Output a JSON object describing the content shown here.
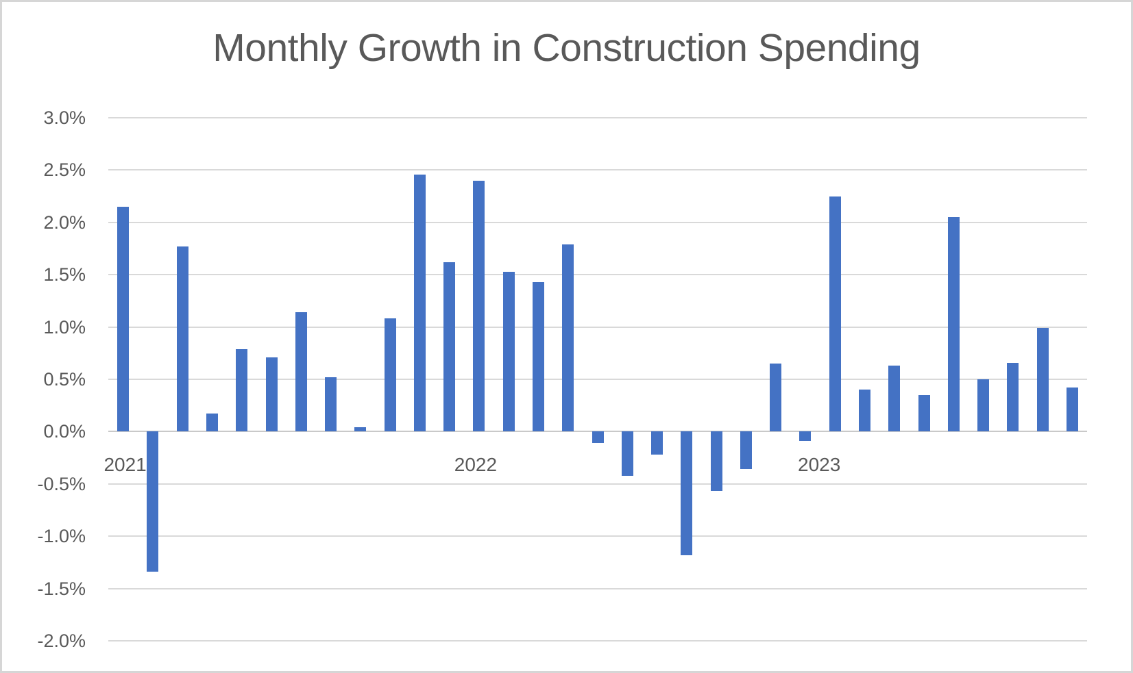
{
  "title": "Monthly Growth in Construction Spending",
  "chart_data": {
    "type": "bar",
    "title": "Monthly Growth in Construction Spending",
    "categories": [
      "Jan 2021",
      "Feb 2021",
      "Mar 2021",
      "Apr 2021",
      "May 2021",
      "Jun 2021",
      "Jul 2021",
      "Aug 2021",
      "Sep 2021",
      "Oct 2021",
      "Nov 2021",
      "Dec 2021",
      "Jan 2022",
      "Feb 2022",
      "Mar 2022",
      "Apr 2022",
      "May 2022",
      "Jun 2022",
      "Jul 2022",
      "Aug 2022",
      "Sep 2022",
      "Oct 2022",
      "Nov 2022",
      "Dec 2022",
      "Jan 2023",
      "Feb 2023",
      "Mar 2023",
      "Apr 2023",
      "May 2023",
      "Jun 2023",
      "Jul 2023",
      "Aug 2023",
      "Sep 2023"
    ],
    "values": [
      2.15,
      -1.34,
      1.77,
      0.17,
      0.79,
      0.71,
      1.14,
      0.52,
      0.04,
      1.08,
      2.46,
      1.62,
      2.4,
      1.53,
      1.43,
      1.79,
      -0.11,
      -0.42,
      -0.22,
      -1.18,
      -0.57,
      -0.36,
      0.65,
      -0.09,
      2.25,
      0.4,
      0.63,
      0.35,
      2.05,
      0.5,
      0.66,
      0.99,
      0.42
    ],
    "value_unit": "%",
    "xlabel": "",
    "ylabel": "",
    "ylim": [
      -2.0,
      3.0
    ],
    "y_tick_step": 0.5,
    "y_tick_labels": [
      "3.0%",
      "2.5%",
      "2.0%",
      "1.5%",
      "1.0%",
      "0.5%",
      "0.0%",
      "-0.5%",
      "-1.0%",
      "-1.5%",
      "-2.0%"
    ],
    "year_labels": [
      {
        "label": "2021",
        "month_index": 0
      },
      {
        "label": "2022",
        "month_index": 12
      },
      {
        "label": "2023",
        "month_index": 24
      }
    ],
    "grid": true,
    "legend": false,
    "colors": {
      "bar": "#4472C4",
      "gridline": "#D9D9D9",
      "axis_line": "#C9C9C9",
      "text": "#595959",
      "border": "#D6D6D6",
      "background": "#FFFFFF"
    }
  }
}
